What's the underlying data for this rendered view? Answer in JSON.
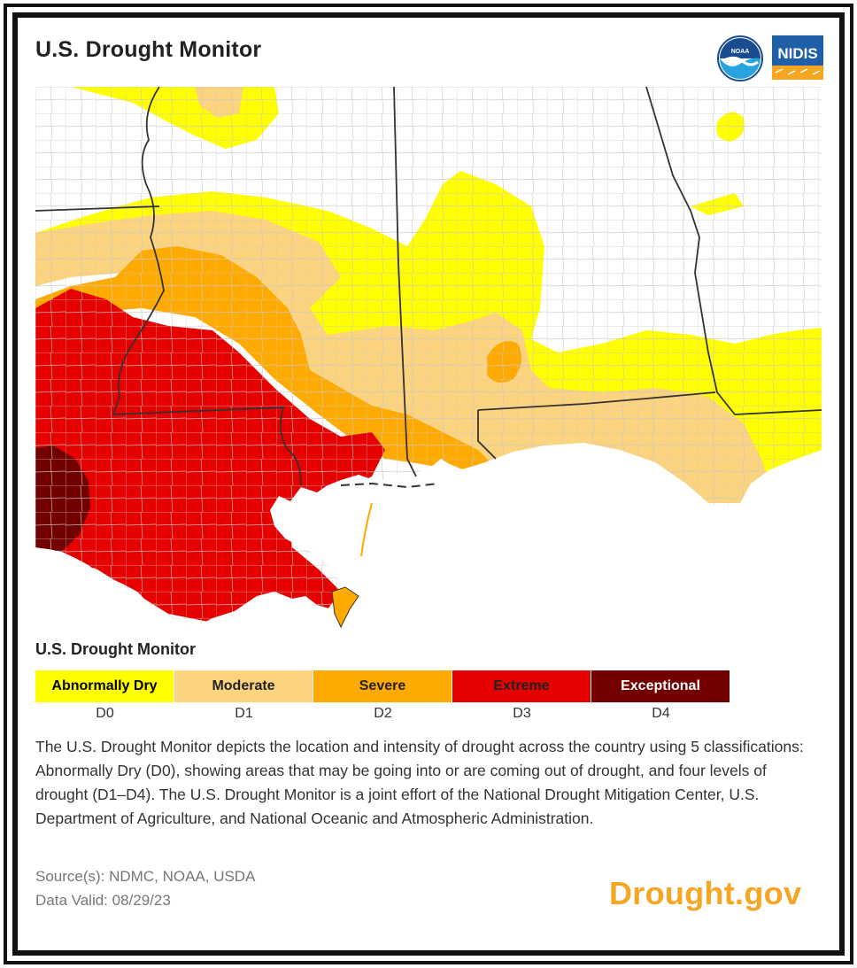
{
  "header": {
    "title": "U.S. Drought Monitor"
  },
  "logos": {
    "noaa": {
      "text": "NOAA",
      "icon": "noaa-logo-icon",
      "color": "#1a4d8f"
    },
    "nidis": {
      "text": "NIDIS",
      "icon": "nidis-logo-icon",
      "color": "#1f5fa8",
      "accent": "#f5a623"
    }
  },
  "legend": {
    "title": "U.S. Drought Monitor",
    "items": [
      {
        "label": "Abnormally Dry",
        "code": "D0",
        "color": "#ffff00",
        "text_color": "#000000"
      },
      {
        "label": "Moderate",
        "code": "D1",
        "color": "#fcd37f",
        "text_color": "#222222"
      },
      {
        "label": "Severe",
        "code": "D2",
        "color": "#ffaa00",
        "text_color": "#222222"
      },
      {
        "label": "Extreme",
        "code": "D3",
        "color": "#e60000",
        "text_color": "#222222"
      },
      {
        "label": "Exceptional",
        "code": "D4",
        "color": "#730000",
        "text_color": "#ffffff"
      }
    ]
  },
  "description": "The U.S. Drought Monitor depicts the location and intensity of drought across the country using 5 classifications: Abnormally Dry (D0), showing areas that may be going into or are coming out of drought, and four levels of drought (D1–D4). The U.S. Drought Monitor is a joint effort of the National Drought Mitigation Center, U.S. Department of Agriculture, and National Oceanic and Atmospheric Administration.",
  "footer": {
    "source": "Source(s): NDMC, NOAA, USDA",
    "valid": "Data Valid: 08/29/23",
    "brand": "Drought.gov"
  }
}
